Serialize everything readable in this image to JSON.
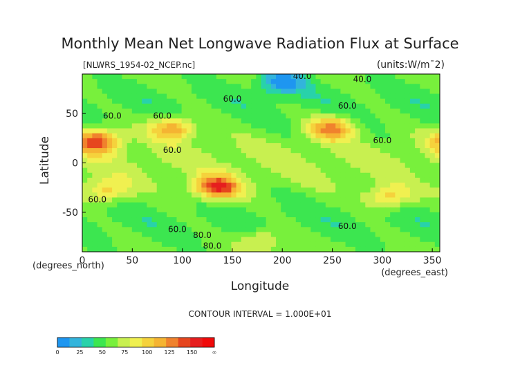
{
  "chart_data": {
    "type": "heatmap",
    "title": "Monthly Mean Net Longwave Radiation Flux at Surface",
    "subtitle_left": "[NLWRS_1954-02_NCEP.nc]",
    "subtitle_right": "(units:W/m¯2)",
    "xlabel": "Longitude",
    "ylabel": "Latitude",
    "x_unit_label": "(degrees_east)",
    "y_unit_label": "(degrees_north)",
    "xlim": [
      0,
      357.5
    ],
    "ylim": [
      -90,
      90
    ],
    "x_ticks": [
      0,
      50,
      100,
      150,
      200,
      250,
      300,
      350
    ],
    "y_ticks": [
      50,
      0,
      -50
    ],
    "contour_interval_text": "CONTOUR INTERVAL = 1.000E+01",
    "contour_labels": [
      {
        "text": "40.0",
        "lon": 220,
        "lat": 85
      },
      {
        "text": "40.0",
        "lon": 280,
        "lat": 82
      },
      {
        "text": "60.0",
        "lon": 30,
        "lat": 45
      },
      {
        "text": "60.0",
        "lon": 80,
        "lat": 45
      },
      {
        "text": "60.0",
        "lon": 150,
        "lat": 62
      },
      {
        "text": "60.0",
        "lon": 265,
        "lat": 55
      },
      {
        "text": "60.0",
        "lon": 300,
        "lat": 20
      },
      {
        "text": "60.0",
        "lon": 90,
        "lat": 10
      },
      {
        "text": "60.0",
        "lon": 15,
        "lat": -40
      },
      {
        "text": "60.0",
        "lon": 265,
        "lat": -67
      },
      {
        "text": "60.0",
        "lon": 95,
        "lat": -70
      },
      {
        "text": "80.0",
        "lon": 120,
        "lat": -76
      },
      {
        "text": "80.0",
        "lon": 130,
        "lat": -87
      }
    ],
    "colorbar": {
      "levels": [
        0,
        25,
        50,
        75,
        100,
        125,
        150
      ],
      "tick_labels": [
        "0",
        "25",
        "50",
        "75",
        "100",
        "125",
        "150",
        "∞"
      ],
      "colors": [
        "#1e96f0",
        "#32b4dc",
        "#28d2aa",
        "#3ce650",
        "#78f03c",
        "#c8f050",
        "#f0f050",
        "#f5d23c",
        "#f5b432",
        "#f0822d",
        "#e6461e",
        "#e61e1e",
        "#f00a0a"
      ]
    },
    "anomalies": [
      {
        "name": "north-africa-high",
        "lon": 15,
        "lat": 22,
        "peak": 140
      },
      {
        "name": "tibet-high",
        "lon": 90,
        "lat": 35,
        "peak": 120
      },
      {
        "name": "south-america-high",
        "lon": 305,
        "lat": -35,
        "peak": 105
      },
      {
        "name": "north-america-high",
        "lon": 250,
        "lat": 35,
        "peak": 125
      },
      {
        "name": "australia-high",
        "lon": 135,
        "lat": -25,
        "peak": 145
      },
      {
        "name": "south-africa-high",
        "lon": 25,
        "lat": -28,
        "peak": 100
      },
      {
        "name": "antarctic-coast-band",
        "lon": 180,
        "lat": -78,
        "peak": 90
      },
      {
        "name": "arctic-low",
        "lon": 200,
        "lat": 82,
        "peak": 10
      }
    ]
  }
}
